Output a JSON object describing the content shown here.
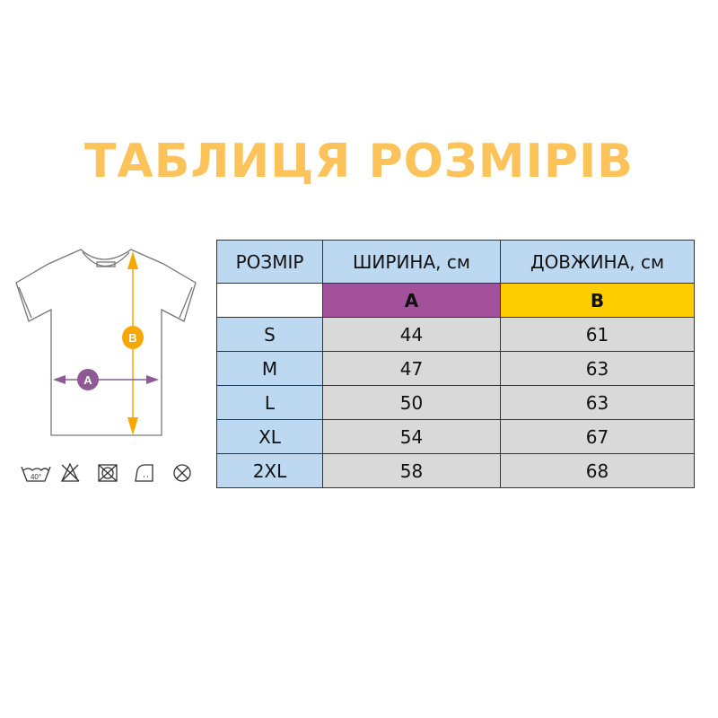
{
  "title": "ТАБЛИЦЯ РОЗМІРІВ",
  "table": {
    "headers": [
      "РОЗМІР",
      "ШИРИНА, см",
      "ДОВЖИНА, см"
    ],
    "sublabels": [
      "",
      "A",
      "B"
    ],
    "rows": [
      [
        "S",
        "44",
        "61"
      ],
      [
        "M",
        "47",
        "63"
      ],
      [
        "L",
        "50",
        "63"
      ],
      [
        "XL",
        "54",
        "67"
      ],
      [
        "2XL",
        "58",
        "68"
      ]
    ]
  },
  "diagram": {
    "label_a": "A",
    "label_b": "B",
    "wash_temp": "40°"
  },
  "colors": {
    "title": "#fcc35b",
    "width_a": "#a4519b",
    "length_b": "#ffcc00",
    "header": "#bcd9f1",
    "cell": "#d9d9d9",
    "arrow_b": "#f6a800",
    "arrow_a": "#8e5a95"
  },
  "care_icons": [
    "wash-40-icon",
    "no-bleach-icon",
    "no-tumble-dry-icon",
    "iron-low-icon",
    "no-dry-clean-icon"
  ]
}
